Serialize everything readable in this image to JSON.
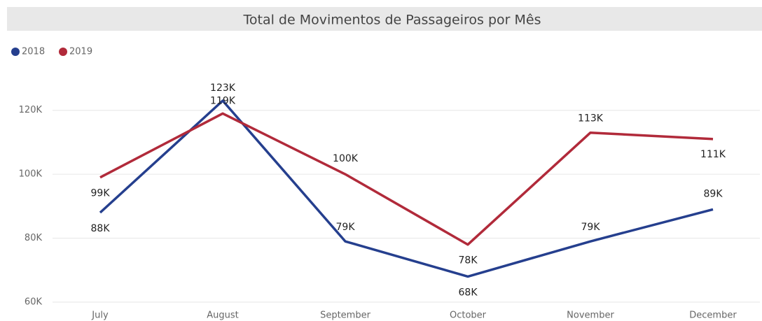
{
  "chart_data": {
    "type": "line",
    "title": "Total de Movimentos de Passageiros por Mês",
    "categories": [
      "July",
      "August",
      "September",
      "October",
      "November",
      "December"
    ],
    "series": [
      {
        "name": "2018",
        "color": "#253f8e",
        "values": [
          88000,
          123000,
          79000,
          68000,
          79000,
          89000
        ],
        "value_labels": [
          "88K",
          "123K",
          "79K",
          "68K",
          "79K",
          "89K"
        ]
      },
      {
        "name": "2019",
        "color": "#b12a3a",
        "values": [
          99000,
          119000,
          100000,
          78000,
          113000,
          111000
        ],
        "value_labels": [
          "99K",
          "119K",
          "100K",
          "78K",
          "113K",
          "111K"
        ]
      }
    ],
    "ylim": [
      60000,
      130000
    ],
    "yticks": [
      {
        "value": 60000,
        "label": "60K"
      },
      {
        "value": 80000,
        "label": "80K"
      },
      {
        "value": 100000,
        "label": "100K"
      },
      {
        "value": 120000,
        "label": "120K"
      }
    ],
    "grid": true,
    "legend": "top-left"
  }
}
